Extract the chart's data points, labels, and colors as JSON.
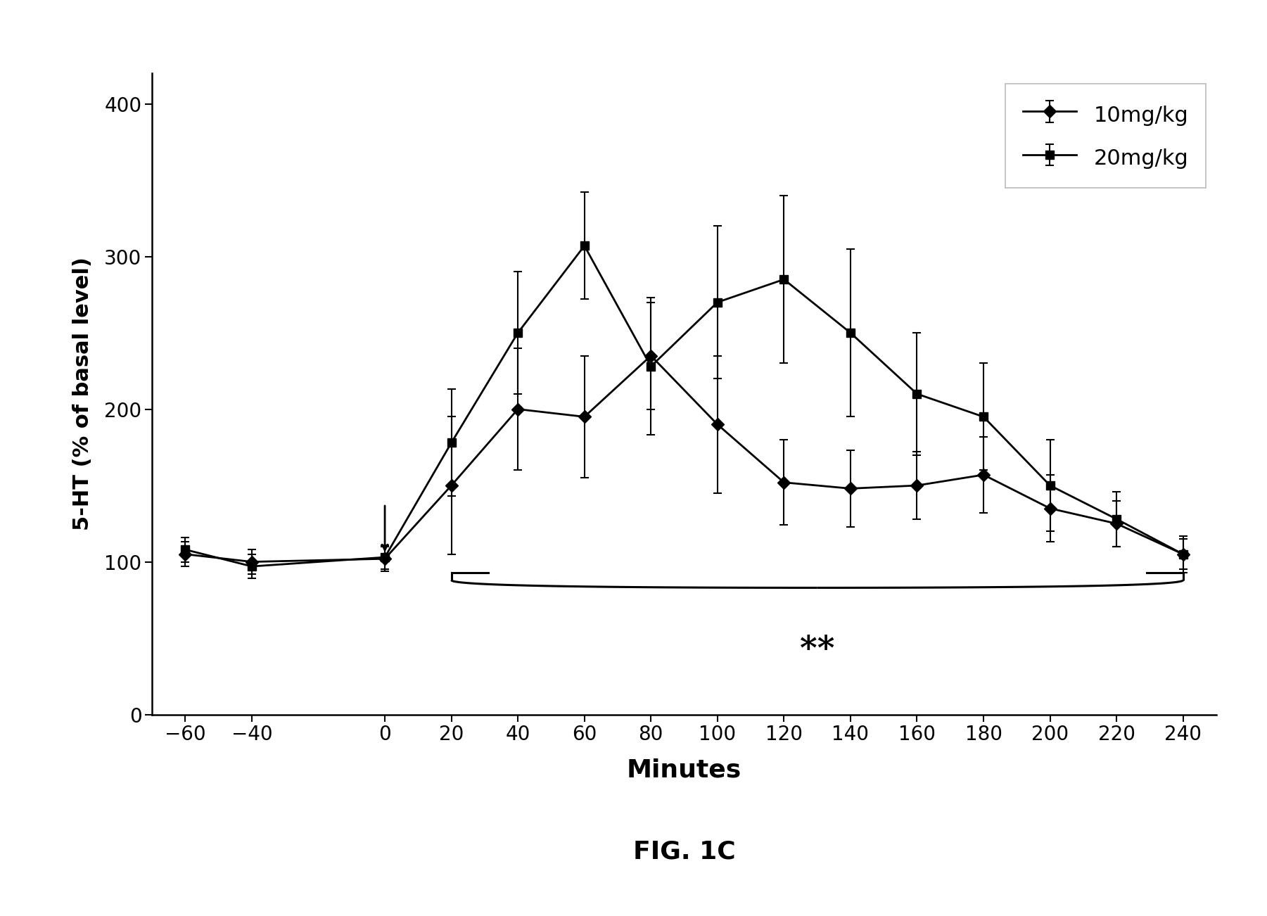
{
  "x": [
    -60,
    -40,
    0,
    20,
    40,
    60,
    80,
    100,
    120,
    140,
    160,
    180,
    200,
    220,
    240
  ],
  "y_10mg": [
    105,
    100,
    102,
    150,
    200,
    195,
    235,
    190,
    152,
    148,
    150,
    157,
    135,
    125,
    105
  ],
  "y_20mg": [
    108,
    97,
    103,
    178,
    250,
    307,
    228,
    270,
    285,
    250,
    210,
    195,
    150,
    128,
    105
  ],
  "err_10mg": [
    8,
    8,
    8,
    45,
    40,
    40,
    35,
    45,
    28,
    25,
    22,
    25,
    22,
    15,
    10
  ],
  "err_20mg": [
    8,
    8,
    8,
    35,
    40,
    35,
    45,
    50,
    55,
    55,
    40,
    35,
    30,
    18,
    12
  ],
  "xlabel": "Minutes",
  "ylabel": "5-HT (% of basal level)",
  "ylim": [
    0,
    420
  ],
  "xlim": [
    -70,
    250
  ],
  "yticks": [
    0,
    100,
    200,
    300,
    400
  ],
  "xticks": [
    -60,
    -40,
    0,
    20,
    40,
    60,
    80,
    100,
    120,
    140,
    160,
    180,
    200,
    220,
    240
  ],
  "legend_10mg": "10mg/kg",
  "legend_20mg": "20mg/kg",
  "fig_label": "FIG. 1C",
  "background_color": "#ffffff",
  "line_color": "#000000",
  "bracket_start": 20,
  "bracket_end": 240,
  "bracket_top_y": 93,
  "bracket_mid_y": 83,
  "significance_text": "**",
  "sig_y": 42
}
